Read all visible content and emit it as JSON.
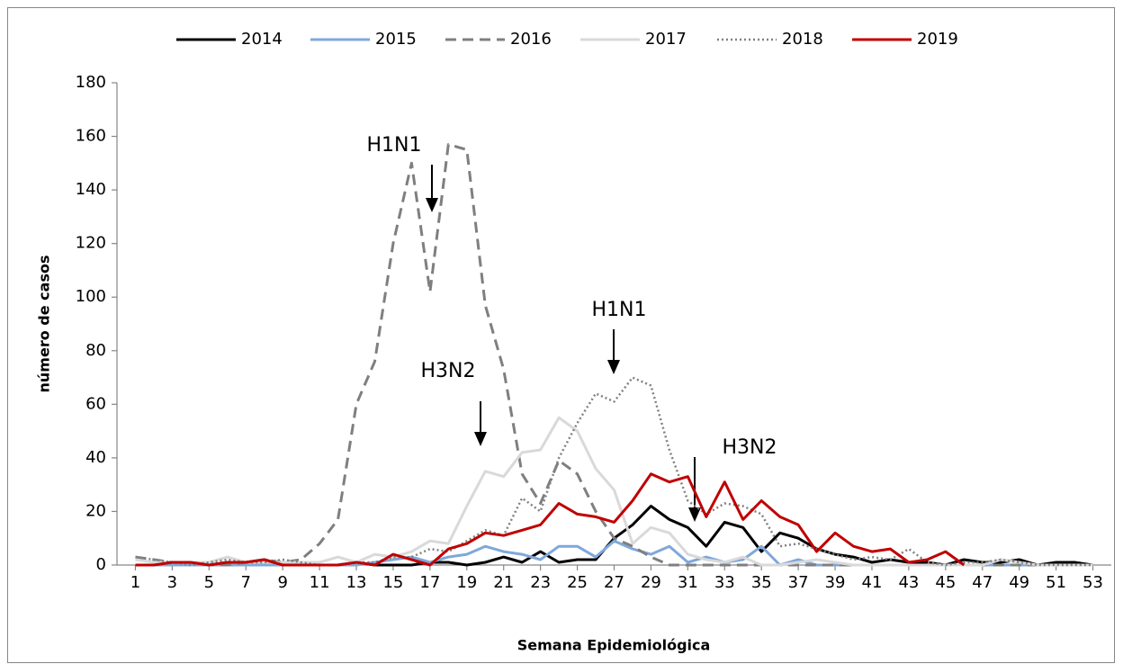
{
  "chart_data": {
    "type": "line",
    "x": [
      1,
      2,
      3,
      4,
      5,
      6,
      7,
      8,
      9,
      10,
      11,
      12,
      13,
      14,
      15,
      16,
      17,
      18,
      19,
      20,
      21,
      22,
      23,
      24,
      25,
      26,
      27,
      28,
      29,
      30,
      31,
      32,
      33,
      34,
      35,
      36,
      37,
      38,
      39,
      40,
      41,
      42,
      43,
      44,
      45,
      46,
      47,
      48,
      49,
      50,
      51,
      52,
      53
    ],
    "xlim": [
      0,
      54
    ],
    "xticks": [
      1,
      3,
      5,
      7,
      9,
      11,
      13,
      15,
      17,
      19,
      21,
      23,
      25,
      27,
      29,
      31,
      33,
      35,
      37,
      39,
      41,
      43,
      45,
      47,
      49,
      51,
      53
    ],
    "ylim": [
      0,
      180
    ],
    "yticks": [
      0,
      20,
      40,
      60,
      80,
      100,
      120,
      140,
      160,
      180
    ],
    "xlabel": "Semana Epidemiológica",
    "ylabel": "número de casos",
    "grid": false,
    "legend": "top",
    "annotations": [
      "H1N1",
      "H3N2",
      "H1N1",
      "H3N2"
    ],
    "series": [
      {
        "name": "2014",
        "color": "#000000",
        "dash": "solid",
        "values": [
          0,
          0,
          1,
          1,
          0,
          1,
          1,
          2,
          0,
          0,
          0,
          0,
          1,
          0,
          0,
          0,
          1,
          1,
          0,
          1,
          3,
          1,
          5,
          1,
          2,
          2,
          10,
          15,
          22,
          17,
          14,
          7,
          16,
          14,
          5,
          12,
          10,
          6,
          4,
          3,
          1,
          2,
          1,
          1,
          0,
          2,
          1,
          1,
          2,
          0,
          1,
          1,
          0
        ]
      },
      {
        "name": "2015",
        "color": "#7fa8da",
        "dash": "solid",
        "values": [
          0,
          0,
          0,
          0,
          0,
          0,
          0,
          0,
          0,
          0,
          0,
          0,
          0,
          1,
          2,
          3,
          1,
          3,
          4,
          7,
          5,
          4,
          2,
          7,
          7,
          3,
          9,
          6,
          4,
          7,
          1,
          3,
          1,
          2,
          7,
          0,
          2,
          0,
          0,
          0,
          0,
          0,
          0,
          0,
          0,
          0,
          0,
          0,
          0,
          0,
          0,
          0,
          0
        ]
      },
      {
        "name": "2016",
        "color": "#7f7f7f",
        "dash": "dashed",
        "values": [
          3,
          2,
          1,
          1,
          0,
          0,
          1,
          2,
          1,
          2,
          8,
          17,
          60,
          76,
          120,
          150,
          102,
          157,
          155,
          97,
          73,
          34,
          23,
          39,
          34,
          20,
          10,
          7,
          3,
          0,
          0,
          0,
          0,
          0,
          0,
          0,
          0,
          0,
          0,
          0,
          0,
          0,
          0,
          0,
          0,
          0,
          0,
          0,
          0,
          0,
          0,
          0,
          0
        ]
      },
      {
        "name": "2017",
        "color": "#d9d9d9",
        "dash": "solid",
        "values": [
          2,
          1,
          1,
          1,
          1,
          3,
          1,
          1,
          1,
          1,
          1,
          3,
          1,
          4,
          3,
          5,
          9,
          8,
          22,
          35,
          33,
          42,
          43,
          55,
          50,
          36,
          28,
          8,
          14,
          12,
          4,
          2,
          1,
          3,
          0,
          0,
          1,
          2,
          1,
          0,
          0,
          0,
          0,
          0,
          0,
          0,
          0,
          2,
          1,
          0,
          0,
          0,
          0
        ]
      },
      {
        "name": "2018",
        "color": "#808080",
        "dash": "dotted",
        "values": [
          3,
          2,
          1,
          0,
          1,
          2,
          1,
          1,
          2,
          1,
          0,
          0,
          1,
          1,
          3,
          3,
          6,
          5,
          9,
          13,
          11,
          25,
          20,
          40,
          53,
          64,
          61,
          70,
          67,
          43,
          24,
          19,
          23,
          22,
          19,
          7,
          8,
          6,
          4,
          2,
          3,
          2,
          6,
          1,
          0,
          1,
          1,
          2,
          1,
          0,
          0,
          0,
          0
        ]
      },
      {
        "name": "2019",
        "color": "#c00000",
        "dash": "solid",
        "values": [
          0,
          0,
          1,
          1,
          0,
          1,
          1,
          2,
          0,
          0,
          0,
          0,
          1,
          0,
          4,
          2,
          0,
          6,
          8,
          12,
          11,
          13,
          15,
          23,
          19,
          18,
          16,
          24,
          34,
          31,
          33,
          18,
          31,
          17,
          24,
          18,
          15,
          5,
          12,
          7,
          5,
          6,
          1,
          2,
          5,
          0,
          null,
          null,
          null,
          null,
          null,
          null,
          null
        ]
      }
    ]
  }
}
